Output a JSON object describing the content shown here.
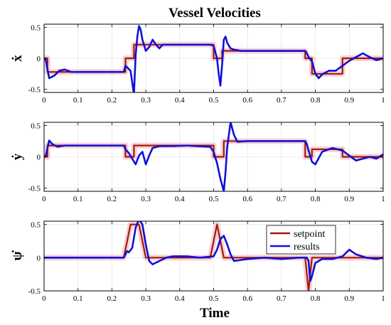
{
  "title": "Vessel Velocities",
  "xlabel": "Time",
  "colors": {
    "setpoint": "#a21b0b",
    "results": "#1010d8",
    "band": "#f6c9cf",
    "grid": "#dddddd"
  },
  "chart_data": [
    {
      "type": "line",
      "ylabel": "ẋ",
      "xlim": [
        0,
        1
      ],
      "ylim": [
        -0.55,
        0.55
      ],
      "xticks": [
        0,
        0.1,
        0.2,
        0.3,
        0.4,
        0.5,
        0.6,
        0.7,
        0.8,
        0.9,
        1
      ],
      "xtick_labels": [
        "0",
        "0.1",
        "0.2",
        "0.3",
        "0.4",
        "0.5",
        "0.6",
        "0.7",
        "0.8",
        "0.9",
        "1"
      ],
      "yticks": [
        -0.5,
        0,
        0.5
      ],
      "ytick_labels": [
        "-0.5",
        "0",
        "0.5"
      ],
      "grid": true,
      "series": [
        {
          "name": "setpoint",
          "step": true,
          "band": 0.03,
          "x": [
            0,
            0.01,
            0.24,
            0.265,
            0.5,
            0.525,
            0.77,
            0.79,
            0.88,
            1
          ],
          "y": [
            0,
            -0.22,
            0,
            0.22,
            0,
            0.12,
            0,
            -0.25,
            0,
            0
          ]
        },
        {
          "name": "results",
          "x": [
            0,
            0.005,
            0.015,
            0.03,
            0.045,
            0.06,
            0.08,
            0.1,
            0.15,
            0.2,
            0.235,
            0.24,
            0.255,
            0.265,
            0.27,
            0.275,
            0.28,
            0.285,
            0.29,
            0.3,
            0.31,
            0.32,
            0.33,
            0.34,
            0.35,
            0.38,
            0.42,
            0.45,
            0.49,
            0.5,
            0.505,
            0.51,
            0.515,
            0.52,
            0.525,
            0.53,
            0.535,
            0.54,
            0.55,
            0.56,
            0.58,
            0.62,
            0.68,
            0.74,
            0.77,
            0.775,
            0.78,
            0.79,
            0.8,
            0.81,
            0.82,
            0.84,
            0.86,
            0.88,
            0.9,
            0.92,
            0.94,
            0.96,
            0.98,
            1
          ],
          "y": [
            0,
            -0.03,
            -0.32,
            -0.28,
            -0.2,
            -0.18,
            -0.22,
            -0.22,
            -0.22,
            -0.22,
            -0.22,
            -0.12,
            -0.2,
            -0.58,
            0.05,
            0.35,
            0.52,
            0.46,
            0.3,
            0.12,
            0.18,
            0.3,
            0.22,
            0.16,
            0.22,
            0.22,
            0.22,
            0.22,
            0.22,
            0.2,
            0.1,
            0,
            -0.25,
            -0.44,
            -0.1,
            0.3,
            0.35,
            0.25,
            0.16,
            0.14,
            0.12,
            0.12,
            0.12,
            0.12,
            0.12,
            0.08,
            0.02,
            -0.05,
            -0.25,
            -0.32,
            -0.26,
            -0.2,
            -0.2,
            -0.12,
            -0.04,
            0.02,
            0.08,
            0.02,
            -0.03,
            0
          ]
        }
      ]
    },
    {
      "type": "line",
      "ylabel": "ẏ",
      "xlim": [
        0,
        1
      ],
      "ylim": [
        -0.55,
        0.55
      ],
      "xticks": [
        0,
        0.1,
        0.2,
        0.3,
        0.4,
        0.5,
        0.6,
        0.7,
        0.8,
        0.9,
        1
      ],
      "xtick_labels": [
        "0",
        "0.1",
        "0.2",
        "0.3",
        "0.4",
        "0.5",
        "0.6",
        "0.7",
        "0.8",
        "0.9",
        "1"
      ],
      "yticks": [
        -0.5,
        0,
        0.5
      ],
      "ytick_labels": [
        "-0.5",
        "0",
        "0.5"
      ],
      "grid": true,
      "series": [
        {
          "name": "setpoint",
          "step": true,
          "band": 0.03,
          "x": [
            0,
            0.01,
            0.24,
            0.265,
            0.5,
            0.53,
            0.77,
            0.79,
            0.88,
            1
          ],
          "y": [
            0,
            0.18,
            0,
            0.18,
            0,
            0.25,
            0,
            0.12,
            0,
            0
          ]
        },
        {
          "name": "results",
          "x": [
            0,
            0.005,
            0.015,
            0.025,
            0.04,
            0.06,
            0.1,
            0.15,
            0.2,
            0.235,
            0.24,
            0.25,
            0.26,
            0.27,
            0.28,
            0.29,
            0.3,
            0.31,
            0.32,
            0.34,
            0.38,
            0.42,
            0.45,
            0.49,
            0.5,
            0.51,
            0.52,
            0.53,
            0.535,
            0.54,
            0.55,
            0.56,
            0.57,
            0.6,
            0.65,
            0.7,
            0.77,
            0.775,
            0.78,
            0.79,
            0.8,
            0.81,
            0.82,
            0.85,
            0.88,
            0.9,
            0.92,
            0.94,
            0.96,
            0.98,
            1
          ],
          "y": [
            0,
            0.02,
            0.26,
            0.2,
            0.16,
            0.18,
            0.18,
            0.18,
            0.18,
            0.18,
            0.12,
            0.06,
            -0.03,
            -0.12,
            0.02,
            0.08,
            -0.12,
            0.02,
            0.14,
            0.17,
            0.17,
            0.18,
            0.17,
            0.16,
            0.08,
            -0.1,
            -0.35,
            -0.55,
            -0.25,
            0.15,
            0.55,
            0.35,
            0.24,
            0.25,
            0.25,
            0.25,
            0.25,
            0.2,
            0.1,
            -0.08,
            -0.12,
            -0.02,
            0.08,
            0.14,
            0.1,
            0.02,
            -0.06,
            -0.03,
            0,
            -0.03,
            0.04
          ]
        }
      ]
    },
    {
      "type": "line",
      "ylabel": "ψ̇",
      "xlim": [
        0,
        1
      ],
      "ylim": [
        -0.5,
        0.55
      ],
      "xticks": [
        0,
        0.1,
        0.2,
        0.3,
        0.4,
        0.5,
        0.6,
        0.7,
        0.8,
        0.9,
        1
      ],
      "xtick_labels": [
        "0",
        "0.1",
        "0.2",
        "0.3",
        "0.4",
        "0.5",
        "0.6",
        "0.7",
        "0.8",
        "0.9",
        "1"
      ],
      "yticks": [
        -0.5,
        0,
        0.5
      ],
      "ytick_labels": [
        "-0.5",
        "0",
        "0.5"
      ],
      "grid": true,
      "legend": "top-right",
      "series": [
        {
          "name": "setpoint",
          "step": false,
          "band": 0.03,
          "x": [
            0,
            0.235,
            0.255,
            0.28,
            0.3,
            0.49,
            0.51,
            0.53,
            0.77,
            0.78,
            0.79,
            1
          ],
          "y": [
            0,
            0,
            0.5,
            0.5,
            0,
            0,
            0.5,
            0,
            0,
            -0.5,
            0,
            0
          ]
        },
        {
          "name": "results",
          "x": [
            0,
            0.235,
            0.24,
            0.245,
            0.25,
            0.26,
            0.27,
            0.28,
            0.29,
            0.3,
            0.31,
            0.32,
            0.34,
            0.36,
            0.38,
            0.42,
            0.46,
            0.5,
            0.51,
            0.52,
            0.53,
            0.54,
            0.55,
            0.56,
            0.6,
            0.65,
            0.7,
            0.75,
            0.775,
            0.78,
            0.785,
            0.79,
            0.8,
            0.82,
            0.85,
            0.88,
            0.9,
            0.92,
            0.95,
            0.98,
            1
          ],
          "y": [
            0,
            0,
            0.05,
            0.1,
            0.08,
            0.15,
            0.45,
            0.58,
            0.5,
            0.2,
            -0.05,
            -0.1,
            -0.05,
            0,
            0.02,
            0.02,
            0,
            0.02,
            0.12,
            0.28,
            0.33,
            0.2,
            0.05,
            -0.05,
            -0.02,
            0,
            -0.02,
            0,
            0,
            -0.05,
            -0.35,
            -0.28,
            -0.08,
            -0.02,
            -0.02,
            0.02,
            0.12,
            0.05,
            0,
            -0.02,
            0
          ]
        }
      ]
    }
  ]
}
